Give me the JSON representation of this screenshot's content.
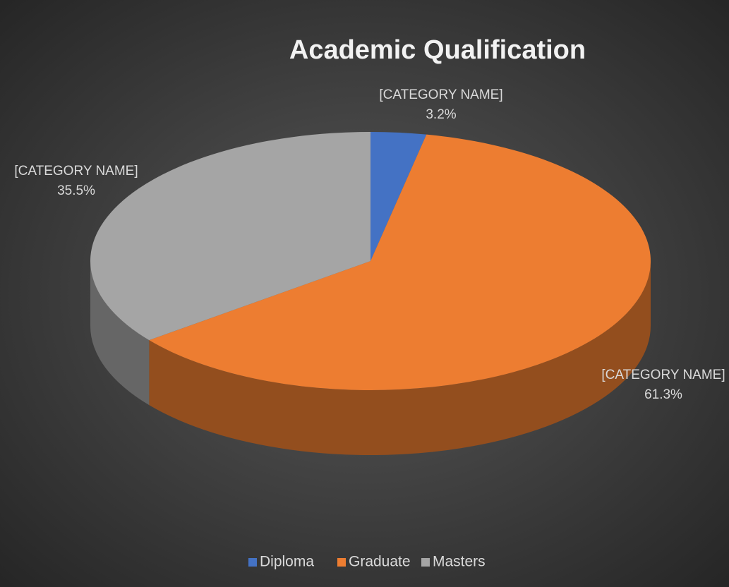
{
  "chart_data": {
    "type": "pie3d",
    "title": "Academic Qualification",
    "categories": [
      "Diploma",
      "Graduate",
      "Masters"
    ],
    "values": [
      3.2,
      61.3,
      35.5
    ],
    "value_labels": [
      "3.2%",
      "61.3%",
      "35.5%"
    ],
    "label_texts": [
      "[CATEGORY NAME]",
      "[CATEGORY NAME]",
      "[CATEGORY NAME]"
    ],
    "colors": [
      "#4472c4",
      "#ed7d31",
      "#a5a5a5"
    ],
    "legend": "bottom"
  }
}
